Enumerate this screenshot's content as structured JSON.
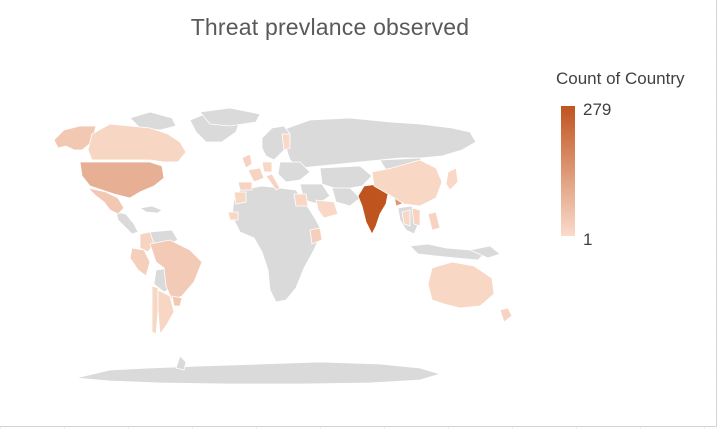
{
  "chart_data": {
    "type": "map",
    "title": "Threat prevlance observed",
    "legend": {
      "title": "Count of Country",
      "max_label": "279",
      "min_label": "1",
      "color_max": "#c0541f",
      "color_min": "#fadbcb",
      "placement": "right"
    },
    "base_color": "#dadada",
    "regions": [
      {
        "name": "India",
        "value": 279
      },
      {
        "name": "United States",
        "value": 90
      },
      {
        "name": "Mexico",
        "value": 40
      },
      {
        "name": "Brazil",
        "value": 35
      },
      {
        "name": "Canada",
        "value": 12
      },
      {
        "name": "Alaska",
        "value": 40
      },
      {
        "name": "China",
        "value": 10
      },
      {
        "name": "Australia",
        "value": 10
      },
      {
        "name": "New Zealand",
        "value": 15
      },
      {
        "name": "Peru",
        "value": 25
      },
      {
        "name": "Colombia",
        "value": 15
      },
      {
        "name": "Argentina",
        "value": 12
      },
      {
        "name": "Chile",
        "value": 10
      },
      {
        "name": "Uruguay",
        "value": 40
      },
      {
        "name": "Egypt",
        "value": 10
      },
      {
        "name": "Saudi Arabia",
        "value": 8
      },
      {
        "name": "Kenya",
        "value": 25
      },
      {
        "name": "Morocco",
        "value": 10
      },
      {
        "name": "Bangladesh",
        "value": 140
      },
      {
        "name": "Japan",
        "value": 8
      },
      {
        "name": "United Kingdom",
        "value": 20
      },
      {
        "name": "Spain",
        "value": 15
      },
      {
        "name": "France",
        "value": 15
      },
      {
        "name": "Germany",
        "value": 10
      },
      {
        "name": "Italy",
        "value": 15
      },
      {
        "name": "Finland",
        "value": 8
      },
      {
        "name": "Vietnam",
        "value": 20
      },
      {
        "name": "Thailand",
        "value": 10
      },
      {
        "name": "Philippines",
        "value": 15
      },
      {
        "name": "Senegal",
        "value": 10
      }
    ]
  }
}
